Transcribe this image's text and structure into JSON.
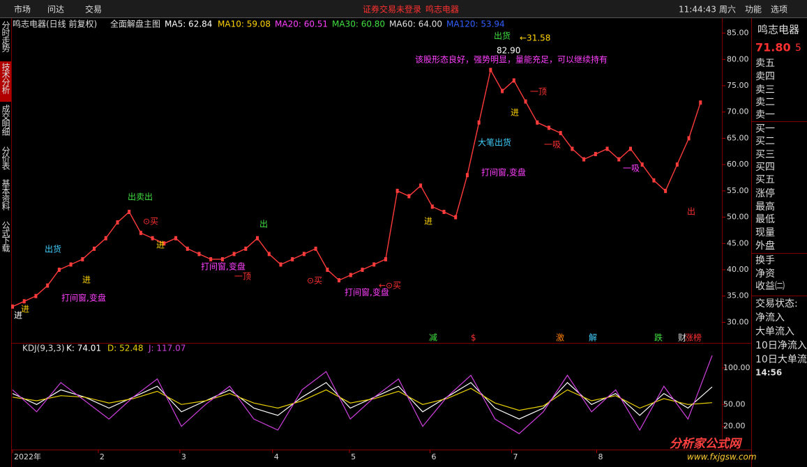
{
  "menu": {
    "items": [
      "市场",
      "问达",
      "交易"
    ],
    "notice": "证券交易未登录",
    "stock": "鸣志电器",
    "time": "11:44:43",
    "weekday": "周六",
    "right_items": [
      "功能",
      "选项"
    ]
  },
  "side_tabs": [
    "分时走势",
    "技术分析",
    "成交明细",
    "分价表",
    "基本资料",
    "公式下载"
  ],
  "price_chart": {
    "type": "line",
    "title": "鸣志电器(日线 前复权)",
    "indicator": "全面解盘主图",
    "ma_labels": [
      "MA5: 62.84",
      "MA10: 59.08",
      "MA20: 60.51",
      "MA30: 60.80",
      "MA60: 64.00",
      "MA120: 53.94"
    ],
    "ma_colors": [
      "#ffffff",
      "#ffd400",
      "#ff40ff",
      "#40e040",
      "#e0e0e0",
      "#3060ff"
    ],
    "color": "#ff3b3b",
    "values": [
      33,
      34,
      35,
      37,
      40,
      41,
      42,
      44,
      46,
      49,
      51,
      47,
      46,
      45,
      46,
      44,
      43,
      42,
      42,
      43,
      44,
      46,
      43,
      41,
      42,
      43,
      44,
      40,
      38,
      39,
      40,
      41,
      42,
      55,
      54,
      56,
      52,
      51,
      50,
      58,
      68,
      78,
      74,
      76,
      72,
      68,
      67,
      66,
      63,
      61,
      62,
      63,
      61,
      63,
      60,
      57,
      55,
      60,
      65,
      71.8
    ],
    "xlim": [
      0,
      60
    ],
    "xticks": [
      {
        "value": 0,
        "label": "2022年"
      },
      {
        "value": 7.35,
        "label": "2"
      },
      {
        "value": 14.35,
        "label": "3"
      },
      {
        "value": 22.3,
        "label": "4"
      },
      {
        "value": 28.9,
        "label": "5"
      },
      {
        "value": 35.8,
        "label": "6"
      },
      {
        "value": 42.8,
        "label": "7"
      },
      {
        "value": 50.1,
        "label": "8"
      }
    ],
    "ylim": [
      29,
      86
    ],
    "yticks": [
      {
        "value": 30,
        "label": "30.00"
      },
      {
        "value": 35,
        "label": "35.00"
      },
      {
        "value": 40,
        "label": "40.00"
      },
      {
        "value": 45,
        "label": "45.00"
      },
      {
        "value": 50,
        "label": "50.00"
      },
      {
        "value": 55,
        "label": "55.00"
      },
      {
        "value": 60,
        "label": "60.00"
      },
      {
        "value": 65,
        "label": "65.00"
      },
      {
        "value": 70,
        "label": "70.00"
      },
      {
        "value": 75,
        "label": "75.00"
      },
      {
        "value": 80,
        "label": "80.00"
      },
      {
        "value": 85,
        "label": "85.00"
      }
    ],
    "annotations": [
      "82.90",
      "该股形态良好，强势明显，量能充足，可以继续持有",
      "一顶",
      "大笔出货",
      "打间窗,变盘",
      "一吸",
      "出货",
      "出卖出",
      "出",
      "打间窗,变盘",
      "打间窗,变盘",
      "打间窗,变盘",
      "一吸",
      "一顶",
      "⊙买",
      "⊙买",
      "←⊙买",
      "出",
      "出货",
      "←31.58",
      "进",
      "进",
      "进",
      "进",
      "进",
      "进"
    ],
    "signals": [
      "减",
      "$",
      "激",
      "解",
      "跌",
      "财",
      "涨榜"
    ]
  },
  "kdj_chart": {
    "type": "line",
    "title": "KDJ(9,3,3)",
    "labels": [
      "K: 74.01",
      "D: 52.48",
      "J: 117.07"
    ],
    "series": [
      {
        "color": "#ffffff",
        "values": [
          65,
          50,
          70,
          60,
          45,
          60,
          75,
          40,
          55,
          70,
          45,
          35,
          60,
          80,
          45,
          60,
          75,
          40,
          60,
          80,
          45,
          30,
          45,
          80,
          50,
          65,
          35,
          65,
          45,
          74.01
        ]
      },
      {
        "color": "#e8d000",
        "values": [
          60,
          55,
          62,
          60,
          52,
          58,
          68,
          50,
          55,
          65,
          52,
          45,
          55,
          70,
          52,
          58,
          68,
          50,
          58,
          72,
          52,
          42,
          48,
          70,
          55,
          62,
          45,
          58,
          50,
          52.48
        ]
      },
      {
        "color": "#d040e0",
        "values": [
          70,
          40,
          80,
          55,
          30,
          60,
          85,
          20,
          50,
          75,
          30,
          15,
          70,
          95,
          30,
          60,
          85,
          20,
          60,
          90,
          30,
          10,
          40,
          90,
          40,
          70,
          15,
          75,
          30,
          117.07
        ]
      }
    ],
    "xlim": [
      0,
      29
    ],
    "ylim": [
      -7,
      119
    ],
    "yticks": [
      {
        "value": 20,
        "label": "20.00"
      },
      {
        "value": 50,
        "label": "50.00"
      },
      {
        "value": 100,
        "label": "100.00"
      }
    ]
  },
  "quote": {
    "name": "鸣志电器",
    "price": "71.80",
    "extra": "5",
    "labels": [
      "卖五",
      "卖四",
      "卖三",
      "卖二",
      "卖一",
      "买一",
      "买二",
      "买三",
      "买四",
      "买五",
      "涨停",
      "最高",
      "最低",
      "现量",
      "外盘",
      "换手",
      "净资",
      "收益㈡",
      "交易状态:",
      "净流入",
      "大单流入",
      "10日净流入",
      "10日大单流入"
    ],
    "time": "14:56"
  },
  "watermark": {
    "title": "分析家公式网",
    "url": "www.fxjgsw.com"
  }
}
